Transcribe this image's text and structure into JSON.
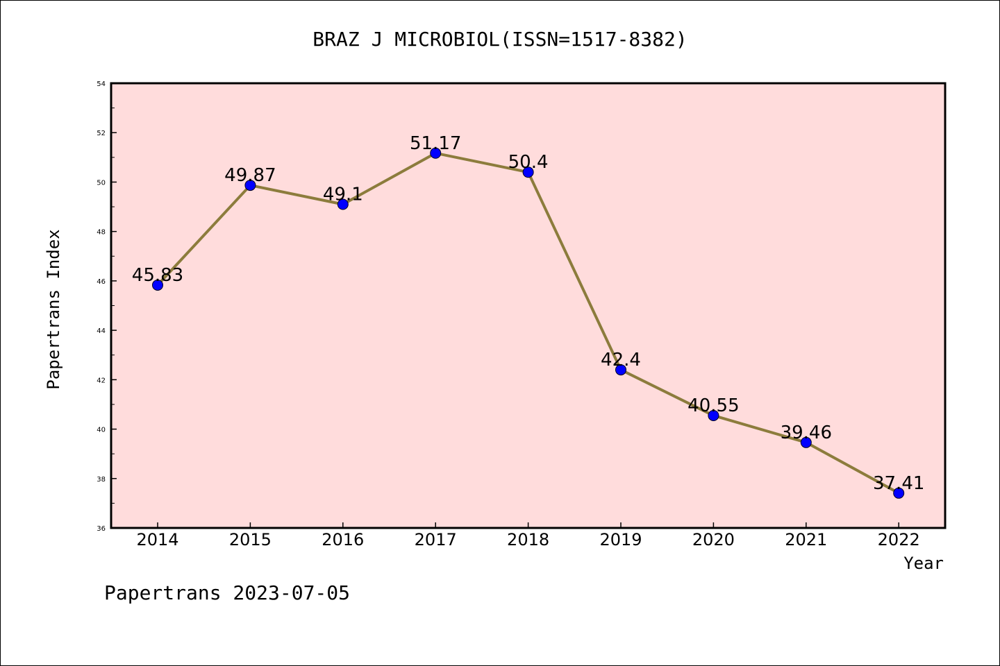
{
  "chart_data": {
    "type": "line",
    "title": "BRAZ J MICROBIOL(ISSN=1517-8382)",
    "xlabel": "Year",
    "ylabel": "Papertrans Index",
    "categories": [
      "2014",
      "2015",
      "2016",
      "2017",
      "2018",
      "2019",
      "2020",
      "2021",
      "2022"
    ],
    "values": [
      45.83,
      49.87,
      49.1,
      51.17,
      50.4,
      42.4,
      40.55,
      39.46,
      37.41
    ],
    "data_labels": [
      "45.83",
      "49.87",
      "49.1",
      "51.17",
      "50.4",
      "42.4",
      "40.55",
      "39.46",
      "37.41"
    ],
    "ylim": [
      36,
      54
    ],
    "yticks": [
      "36",
      "38",
      "40",
      "42",
      "44",
      "46",
      "48",
      "50",
      "52",
      "54"
    ],
    "grid": false,
    "colors": {
      "plot_background": "#ffdcdc",
      "line": "#8c7c3c",
      "marker": "#0000ff"
    }
  },
  "footer": {
    "text": "Papertrans 2023-07-05"
  }
}
